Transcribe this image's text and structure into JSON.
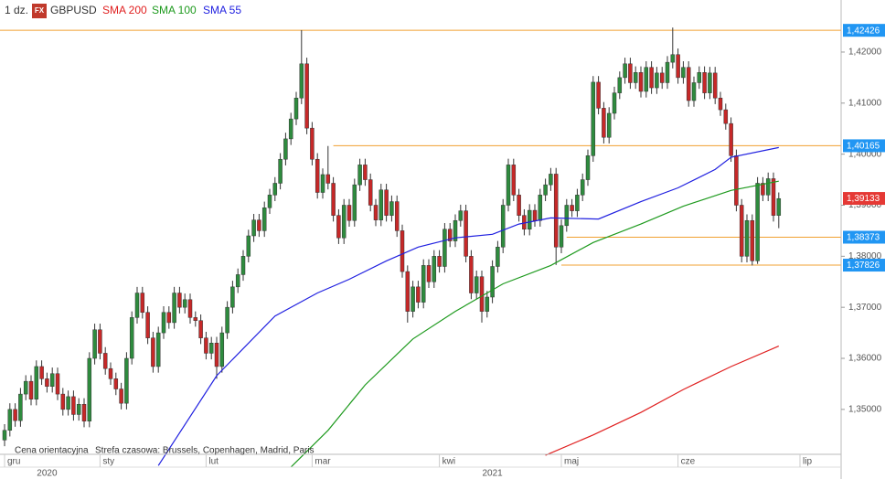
{
  "chart_data": {
    "type": "candlestick",
    "interval": "1 dz.",
    "badge": "FX",
    "symbol": "GBPUSD",
    "footer_left": "Cena orientacyjna",
    "footer_right": "Strefa czasowa: Brussels, Copenhagen, Madrid, Paris",
    "up_color": "#2e8b3e",
    "down_color": "#c62828",
    "xlim": [
      0,
      150
    ],
    "ylim": [
      1.3412,
      1.4302
    ],
    "yticks": [
      {
        "value": 1.35,
        "label": "1,35000"
      },
      {
        "value": 1.36,
        "label": "1,36000"
      },
      {
        "value": 1.37,
        "label": "1,37000"
      },
      {
        "value": 1.38,
        "label": "1,38000"
      },
      {
        "value": 1.39,
        "label": "1,39000"
      },
      {
        "value": 1.4,
        "label": "1,40000"
      },
      {
        "value": 1.41,
        "label": "1,41000"
      },
      {
        "value": 1.42,
        "label": "1,42000"
      }
    ],
    "x_labels": [
      {
        "index": 0,
        "label": "gru"
      },
      {
        "index": 18,
        "label": "sty"
      },
      {
        "index": 38,
        "label": "lut"
      },
      {
        "index": 58,
        "label": "mar"
      },
      {
        "index": 82,
        "label": "kwi"
      },
      {
        "index": 105,
        "label": "maj"
      },
      {
        "index": 127,
        "label": "cze"
      },
      {
        "index": 150,
        "label": "lip"
      }
    ],
    "year_labels": [
      {
        "index": 8,
        "label": "2020"
      },
      {
        "index": 92,
        "label": "2021"
      }
    ],
    "levels": [
      {
        "value": 1.42426,
        "label": "1,42426",
        "from": 0
      },
      {
        "value": 1.40165,
        "label": "1,40165",
        "from": 62
      },
      {
        "value": 1.38373,
        "label": "1,38373",
        "from": 106
      },
      {
        "value": 1.37826,
        "label": "1,37826",
        "from": 105
      }
    ],
    "level_color": "#f0a030",
    "level_label_color": "#2196f3",
    "last_price": {
      "value": 1.39133,
      "label": "1,39133",
      "color": "#e53935"
    },
    "series": [
      {
        "name": "SMA 200",
        "color": "#e02020",
        "x": [
          102,
          111,
          120,
          128,
          137,
          146
        ],
        "values": [
          1.341,
          1.345,
          1.3494,
          1.3539,
          1.3584,
          1.3624
        ]
      },
      {
        "name": "SMA 100",
        "color": "#1e9a1e",
        "x": [
          54,
          61,
          68,
          77,
          85,
          94,
          103,
          111,
          120,
          128,
          137,
          146
        ],
        "values": [
          1.3387,
          1.3459,
          1.3548,
          1.3638,
          1.3692,
          1.3746,
          1.3782,
          1.3827,
          1.3863,
          1.3898,
          1.3929,
          1.3947
        ]
      },
      {
        "name": "SMA 55",
        "color": "#2020e0",
        "x": [
          29,
          40,
          51,
          59,
          65,
          72,
          78,
          85,
          92,
          97,
          103,
          112,
          120,
          127,
          134,
          137,
          146
        ],
        "values": [
          1.339,
          1.3566,
          1.3683,
          1.3728,
          1.3755,
          1.3791,
          1.3818,
          1.3836,
          1.3843,
          1.3863,
          1.3875,
          1.3873,
          1.3907,
          1.3934,
          1.397,
          1.3994,
          1.4013
        ]
      }
    ],
    "ohlc": [
      [
        1.344,
        1.3471,
        1.3428,
        1.3459
      ],
      [
        1.3459,
        1.3512,
        1.3447,
        1.35
      ],
      [
        1.35,
        1.3512,
        1.3466,
        1.3478
      ],
      [
        1.3478,
        1.3542,
        1.3466,
        1.353
      ],
      [
        1.353,
        1.3567,
        1.3518,
        1.3555
      ],
      [
        1.3555,
        1.3567,
        1.3508,
        1.352
      ],
      [
        1.352,
        1.3596,
        1.3508,
        1.3584
      ],
      [
        1.3584,
        1.3596,
        1.3548,
        1.356
      ],
      [
        1.356,
        1.3572,
        1.3533,
        1.3545
      ],
      [
        1.3545,
        1.3582,
        1.3533,
        1.357
      ],
      [
        1.357,
        1.3582,
        1.3518,
        1.353
      ],
      [
        1.353,
        1.3542,
        1.3488,
        1.35
      ],
      [
        1.35,
        1.3537,
        1.3488,
        1.3525
      ],
      [
        1.3525,
        1.3537,
        1.3478,
        1.349
      ],
      [
        1.349,
        1.3522,
        1.3478,
        1.351
      ],
      [
        1.351,
        1.3522,
        1.3465,
        1.3477
      ],
      [
        1.3477,
        1.3612,
        1.3465,
        1.36
      ],
      [
        1.36,
        1.3668,
        1.3588,
        1.3656
      ],
      [
        1.3656,
        1.3668,
        1.3598,
        1.361
      ],
      [
        1.361,
        1.3622,
        1.3568,
        1.358
      ],
      [
        1.358,
        1.3592,
        1.3548,
        1.356
      ],
      [
        1.356,
        1.3572,
        1.3528,
        1.354
      ],
      [
        1.354,
        1.3552,
        1.35,
        1.3512
      ],
      [
        1.3512,
        1.3612,
        1.35,
        1.36
      ],
      [
        1.36,
        1.3692,
        1.3588,
        1.368
      ],
      [
        1.368,
        1.374,
        1.3668,
        1.3728
      ],
      [
        1.3728,
        1.374,
        1.3678,
        1.369
      ],
      [
        1.369,
        1.3702,
        1.3628,
        1.364
      ],
      [
        1.364,
        1.3652,
        1.3572,
        1.3584
      ],
      [
        1.3584,
        1.3662,
        1.3572,
        1.365
      ],
      [
        1.365,
        1.3702,
        1.3638,
        1.369
      ],
      [
        1.369,
        1.3702,
        1.3658,
        1.367
      ],
      [
        1.367,
        1.374,
        1.3658,
        1.3728
      ],
      [
        1.3728,
        1.374,
        1.3688,
        1.37
      ],
      [
        1.37,
        1.3727,
        1.3688,
        1.3715
      ],
      [
        1.3715,
        1.3727,
        1.3668,
        1.368
      ],
      [
        1.368,
        1.3692,
        1.3662,
        1.3674
      ],
      [
        1.3674,
        1.3686,
        1.3628,
        1.364
      ],
      [
        1.364,
        1.3652,
        1.3598,
        1.361
      ],
      [
        1.361,
        1.3642,
        1.3598,
        1.363
      ],
      [
        1.363,
        1.3642,
        1.356,
        1.3584
      ],
      [
        1.3584,
        1.3662,
        1.3572,
        1.365
      ],
      [
        1.365,
        1.3712,
        1.3638,
        1.37
      ],
      [
        1.37,
        1.3752,
        1.3688,
        1.374
      ],
      [
        1.374,
        1.3776,
        1.3728,
        1.3764
      ],
      [
        1.3764,
        1.3812,
        1.3752,
        1.38
      ],
      [
        1.38,
        1.3852,
        1.3788,
        1.384
      ],
      [
        1.384,
        1.3883,
        1.3828,
        1.3871
      ],
      [
        1.3871,
        1.3883,
        1.3838,
        1.385
      ],
      [
        1.385,
        1.3907,
        1.3838,
        1.3895
      ],
      [
        1.3895,
        1.3932,
        1.3883,
        1.392
      ],
      [
        1.392,
        1.3955,
        1.3908,
        1.3943
      ],
      [
        1.3943,
        1.4002,
        1.3931,
        1.399
      ],
      [
        1.399,
        1.4042,
        1.3978,
        1.403
      ],
      [
        1.403,
        1.4081,
        1.4018,
        1.4069
      ],
      [
        1.4069,
        1.4122,
        1.4057,
        1.411
      ],
      [
        1.411,
        1.4243,
        1.4098,
        1.4177
      ],
      [
        1.4177,
        1.4189,
        1.4039,
        1.4051
      ],
      [
        1.4051,
        1.4063,
        1.3978,
        1.399
      ],
      [
        1.399,
        1.4002,
        1.3913,
        1.3925
      ],
      [
        1.3925,
        1.3972,
        1.3913,
        1.396
      ],
      [
        1.396,
        1.4016,
        1.3931,
        1.3943
      ],
      [
        1.3943,
        1.3955,
        1.3868,
        1.388
      ],
      [
        1.388,
        1.3892,
        1.3824,
        1.3836
      ],
      [
        1.3836,
        1.3912,
        1.3824,
        1.39
      ],
      [
        1.39,
        1.3912,
        1.3858,
        1.387
      ],
      [
        1.387,
        1.3952,
        1.3858,
        1.394
      ],
      [
        1.394,
        1.3991,
        1.3928,
        1.3979
      ],
      [
        1.3979,
        1.3991,
        1.3938,
        1.395
      ],
      [
        1.395,
        1.3962,
        1.3888,
        1.39
      ],
      [
        1.39,
        1.3912,
        1.3859,
        1.3871
      ],
      [
        1.3871,
        1.3942,
        1.3859,
        1.393
      ],
      [
        1.393,
        1.3942,
        1.3868,
        1.388
      ],
      [
        1.388,
        1.3919,
        1.3868,
        1.3907
      ],
      [
        1.3907,
        1.3919,
        1.3838,
        1.385
      ],
      [
        1.385,
        1.3862,
        1.3758,
        1.377
      ],
      [
        1.377,
        1.3782,
        1.367,
        1.3692
      ],
      [
        1.3692,
        1.3752,
        1.368,
        1.374
      ],
      [
        1.374,
        1.3752,
        1.3698,
        1.371
      ],
      [
        1.371,
        1.3794,
        1.3698,
        1.3782
      ],
      [
        1.3782,
        1.3794,
        1.3738,
        1.375
      ],
      [
        1.375,
        1.3812,
        1.3738,
        1.38
      ],
      [
        1.38,
        1.3812,
        1.3768,
        1.378
      ],
      [
        1.378,
        1.3865,
        1.3768,
        1.3853
      ],
      [
        1.3853,
        1.3865,
        1.3818,
        1.383
      ],
      [
        1.383,
        1.3882,
        1.3818,
        1.387
      ],
      [
        1.387,
        1.3901,
        1.3858,
        1.3889
      ],
      [
        1.3889,
        1.3901,
        1.3788,
        1.38
      ],
      [
        1.38,
        1.3812,
        1.3716,
        1.3728
      ],
      [
        1.3728,
        1.3772,
        1.3716,
        1.376
      ],
      [
        1.376,
        1.3772,
        1.367,
        1.3692
      ],
      [
        1.3692,
        1.3732,
        1.368,
        1.372
      ],
      [
        1.372,
        1.3792,
        1.3708,
        1.378
      ],
      [
        1.378,
        1.383,
        1.3768,
        1.3818
      ],
      [
        1.3818,
        1.3912,
        1.3806,
        1.39
      ],
      [
        1.39,
        1.3991,
        1.3888,
        1.3979
      ],
      [
        1.3979,
        1.3991,
        1.3908,
        1.392
      ],
      [
        1.392,
        1.3932,
        1.3868,
        1.388
      ],
      [
        1.388,
        1.3892,
        1.3841,
        1.3853
      ],
      [
        1.3853,
        1.3902,
        1.3841,
        1.389
      ],
      [
        1.389,
        1.3902,
        1.3858,
        1.387
      ],
      [
        1.387,
        1.3932,
        1.3858,
        1.392
      ],
      [
        1.392,
        1.3952,
        1.3908,
        1.394
      ],
      [
        1.394,
        1.3973,
        1.3928,
        1.3961
      ],
      [
        1.3961,
        1.3973,
        1.3783,
        1.3818
      ],
      [
        1.3818,
        1.3872,
        1.3806,
        1.386
      ],
      [
        1.386,
        1.3912,
        1.3848,
        1.39
      ],
      [
        1.39,
        1.3912,
        1.3877,
        1.3889
      ],
      [
        1.3889,
        1.3932,
        1.3877,
        1.392
      ],
      [
        1.392,
        1.3962,
        1.3908,
        1.395
      ],
      [
        1.395,
        1.4009,
        1.3938,
        1.3997
      ],
      [
        1.3997,
        1.4153,
        1.3985,
        1.4141
      ],
      [
        1.4141,
        1.4153,
        1.4078,
        1.409
      ],
      [
        1.409,
        1.4102,
        1.4021,
        1.4033
      ],
      [
        1.4033,
        1.4092,
        1.4021,
        1.408
      ],
      [
        1.408,
        1.4132,
        1.4068,
        1.412
      ],
      [
        1.412,
        1.4162,
        1.4108,
        1.415
      ],
      [
        1.415,
        1.4189,
        1.4138,
        1.4177
      ],
      [
        1.4177,
        1.4189,
        1.4128,
        1.414
      ],
      [
        1.414,
        1.4172,
        1.4128,
        1.416
      ],
      [
        1.416,
        1.4172,
        1.4111,
        1.4123
      ],
      [
        1.4123,
        1.4182,
        1.4111,
        1.417
      ],
      [
        1.417,
        1.4182,
        1.4118,
        1.413
      ],
      [
        1.413,
        1.4171,
        1.4118,
        1.4159
      ],
      [
        1.4159,
        1.4171,
        1.4128,
        1.414
      ],
      [
        1.414,
        1.4192,
        1.4128,
        1.418
      ],
      [
        1.418,
        1.4248,
        1.4168,
        1.4195
      ],
      [
        1.4195,
        1.4207,
        1.4138,
        1.415
      ],
      [
        1.415,
        1.4182,
        1.4138,
        1.417
      ],
      [
        1.417,
        1.4182,
        1.4093,
        1.4105
      ],
      [
        1.4105,
        1.4152,
        1.4093,
        1.414
      ],
      [
        1.414,
        1.4172,
        1.4128,
        1.416
      ],
      [
        1.416,
        1.4172,
        1.4108,
        1.412
      ],
      [
        1.412,
        1.4171,
        1.4108,
        1.4159
      ],
      [
        1.4159,
        1.4171,
        1.4098,
        1.411
      ],
      [
        1.411,
        1.4122,
        1.4075,
        1.4087
      ],
      [
        1.4087,
        1.4099,
        1.4048,
        1.406
      ],
      [
        1.406,
        1.4072,
        1.3985,
        1.3997
      ],
      [
        1.3997,
        1.4009,
        1.3888,
        1.39
      ],
      [
        1.39,
        1.3912,
        1.3788,
        1.38
      ],
      [
        1.38,
        1.3882,
        1.3788,
        1.387
      ],
      [
        1.387,
        1.3882,
        1.3782,
        1.3791
      ],
      [
        1.3791,
        1.3955,
        1.3785,
        1.3943
      ],
      [
        1.3943,
        1.3955,
        1.3908,
        1.392
      ],
      [
        1.392,
        1.3964,
        1.3908,
        1.3952
      ],
      [
        1.3952,
        1.3964,
        1.3868,
        1.388
      ],
      [
        1.388,
        1.3925,
        1.3855,
        1.3913
      ]
    ]
  }
}
